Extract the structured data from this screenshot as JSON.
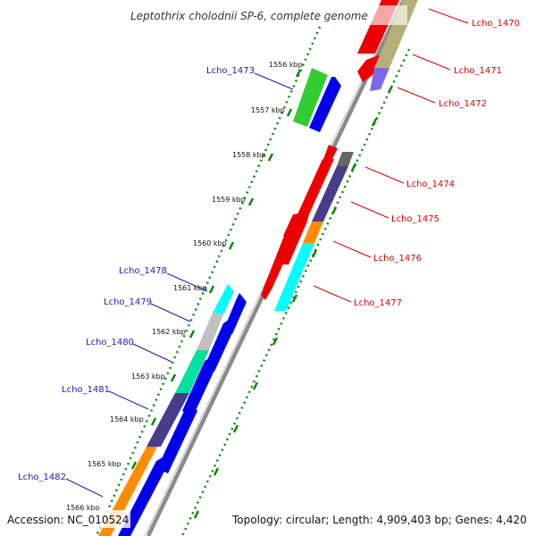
{
  "title": "Leptothrix cholodnii SP-6, complete genome",
  "footer": {
    "accession": "Accession: NC_010524",
    "topology": "Topology: circular; Length: 4,909,403 bp; Genes: 4,420"
  },
  "ruler_ticks": [
    "1556 kbp",
    "1557 kbp",
    "1558 kbp",
    "1559 kbp",
    "1560 kbp",
    "1561 kbp",
    "1562 kbp",
    "1563 kbp",
    "1564 kbp",
    "1565 kbp",
    "1566 kbp"
  ],
  "gene_labels": {
    "lcho_1470": "Lcho_1470",
    "lcho_1471": "Lcho_1471",
    "lcho_1472": "Lcho_1472",
    "lcho_1473": "Lcho_1473",
    "lcho_1474": "Lcho_1474",
    "lcho_1475": "Lcho_1475",
    "lcho_1476": "Lcho_1476",
    "lcho_1477": "Lcho_1477",
    "lcho_1478": "Lcho_1478",
    "lcho_1479": "Lcho_1479",
    "lcho_1480": "Lcho_1480",
    "lcho_1481": "Lcho_1481",
    "lcho_1482": "Lcho_1482"
  },
  "colors": {
    "red": "#ee0000",
    "blue": "#0000ee",
    "olive": "#b5b07a",
    "purple": "#7b68ee",
    "green": "#33cc33",
    "darkgray": "#666666",
    "slate": "#483d8b",
    "orange": "#ff8c00",
    "cyan": "#00ffff",
    "silver": "#c0c0c0",
    "teal": "#00e0a0",
    "tickgreen": "#008800",
    "backbone": "#808080"
  }
}
